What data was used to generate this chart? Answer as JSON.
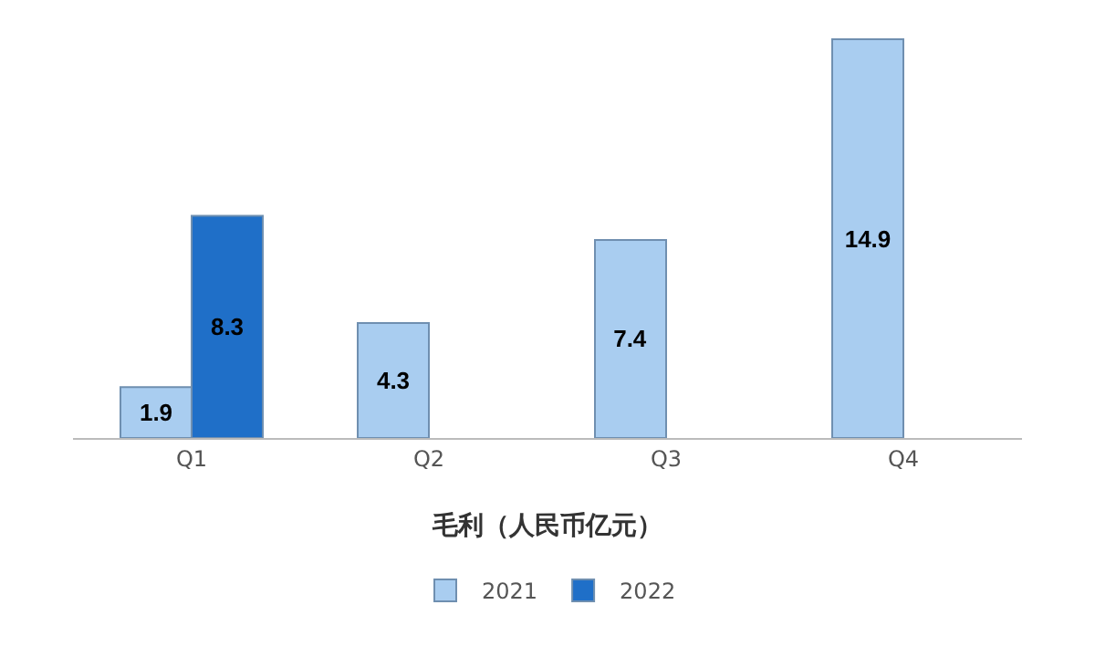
{
  "chart_data": {
    "type": "bar",
    "xlabel": "毛利（人民币亿元）",
    "categories": [
      "Q1",
      "Q2",
      "Q3",
      "Q4"
    ],
    "series": [
      {
        "name": "2021",
        "color": "#a9cdf0",
        "values": [
          1.9,
          4.3,
          7.4,
          14.9
        ]
      },
      {
        "name": "2022",
        "color": "#1f6fc8",
        "values": [
          8.3,
          null,
          null,
          null
        ]
      }
    ],
    "data_labels": true,
    "grid": false,
    "legend": "bottom"
  }
}
